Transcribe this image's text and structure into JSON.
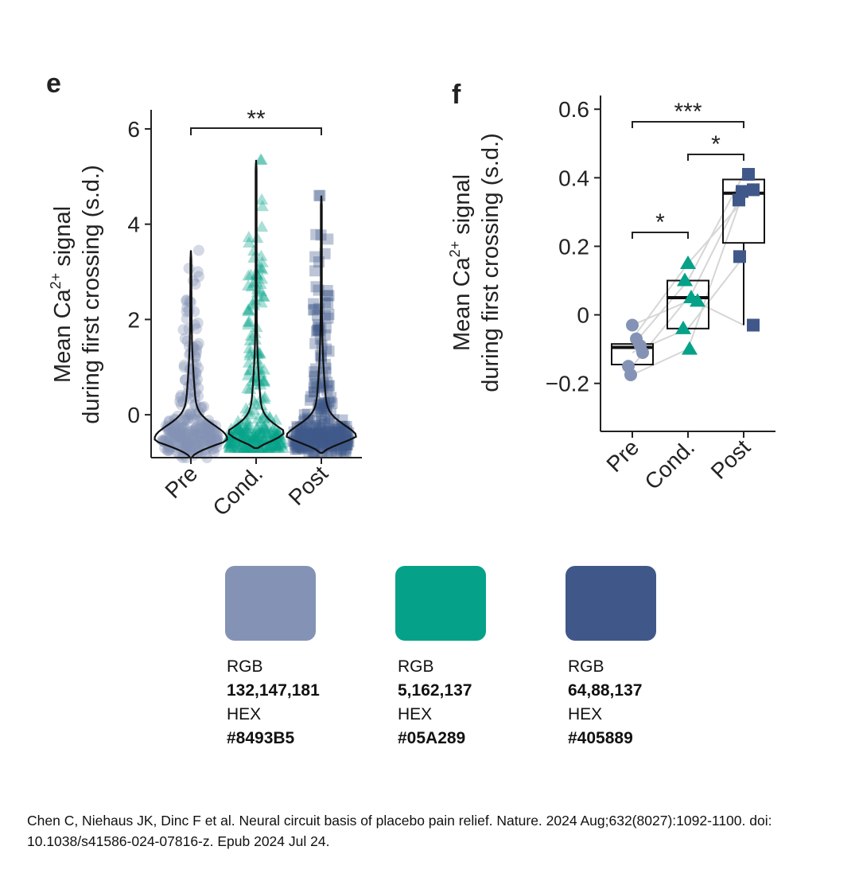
{
  "chart_data": [
    {
      "panel_label": "e",
      "type": "violin",
      "categories": [
        "Pre",
        "Cond.",
        "Post"
      ],
      "ylabel_line1": "Mean Ca",
      "ylabel_sup": "2+",
      "ylabel_line1_suffix": " signal",
      "ylabel_line2": "during first crossing (s.d.)",
      "ylim": [
        -0.9,
        6.4
      ],
      "yticks": [
        0,
        2,
        4,
        6
      ],
      "series": [
        {
          "category": "Pre",
          "min": -0.9,
          "max": 3.45,
          "mode": -0.5,
          "outliers_max": 3.45
        },
        {
          "category": "Cond.",
          "min": -0.7,
          "max": 5.35,
          "mode": -0.55,
          "outliers_max": 5.35
        },
        {
          "category": "Post",
          "min": -0.8,
          "max": 4.6,
          "mode": -0.5,
          "outliers_max": 4.6
        }
      ],
      "significance": [
        {
          "from": "Pre",
          "to": "Post",
          "label": "**"
        }
      ],
      "colors": [
        "#8493B5",
        "#05A289",
        "#405889"
      ]
    },
    {
      "panel_label": "f",
      "type": "box",
      "categories": [
        "Pre",
        "Cond.",
        "Post"
      ],
      "ylabel_line1": "Mean Ca",
      "ylabel_sup": "2+",
      "ylabel_line1_suffix": " signal",
      "ylabel_line2": "during first crossing (s.d.)",
      "ylim": [
        -0.34,
        0.64
      ],
      "yticks": [
        -0.2,
        0,
        0.2,
        0.4,
        0.6
      ],
      "ytick_labels": [
        "−0.2",
        "0",
        "0.2",
        "0.4",
        "0.6"
      ],
      "series": [
        {
          "category": "Pre",
          "marker": "circle",
          "color": "#8493B5",
          "box": {
            "q1": -0.145,
            "median": -0.095,
            "q3": -0.085
          },
          "points": [
            -0.03,
            -0.07,
            -0.09,
            -0.11,
            -0.15,
            -0.175
          ]
        },
        {
          "category": "Cond.",
          "marker": "triangle",
          "color": "#05A289",
          "box": {
            "q1": -0.04,
            "median": 0.05,
            "q3": 0.1
          },
          "points": [
            0.15,
            0.1,
            0.05,
            0.04,
            -0.04,
            -0.1
          ]
        },
        {
          "category": "Post",
          "marker": "square",
          "color": "#405889",
          "box": {
            "q1": 0.21,
            "median": 0.355,
            "q3": 0.395
          },
          "whisker_low": -0.03,
          "points": [
            0.41,
            0.365,
            0.335,
            0.17,
            -0.03,
            0.36
          ]
        }
      ],
      "paired_lines": [
        [
          -0.03,
          0.04,
          0.365
        ],
        [
          -0.07,
          0.15,
          0.335
        ],
        [
          -0.09,
          0.1,
          0.41
        ],
        [
          -0.11,
          -0.04,
          0.17
        ],
        [
          -0.15,
          0.05,
          -0.03
        ],
        [
          -0.175,
          -0.1,
          0.36
        ]
      ],
      "significance": [
        {
          "from": "Pre",
          "to": "Post",
          "label": "***"
        },
        {
          "from": "Cond.",
          "to": "Post",
          "label": "*"
        },
        {
          "from": "Pre",
          "to": "Cond.",
          "label": "*"
        }
      ]
    }
  ],
  "palette": [
    {
      "color": "#8493B5",
      "rgb_label": "RGB",
      "rgb": "132,147,181",
      "hex_label": "HEX",
      "hex": "#8493B5"
    },
    {
      "color": "#05A289",
      "rgb_label": "RGB",
      "rgb": "5,162,137",
      "hex_label": "HEX",
      "hex": "#05A289"
    },
    {
      "color": "#405889",
      "rgb_label": "RGB",
      "rgb": "64,88,137",
      "hex_label": "HEX",
      "hex": "#405889"
    }
  ],
  "citation": "Chen C, Niehaus JK, Dinc F et al. Neural circuit basis of placebo pain relief. Nature. 2024 Aug;632(8027):1092-1100. doi: 10.1038/s41586-024-07816-z. Epub 2024 Jul 24."
}
